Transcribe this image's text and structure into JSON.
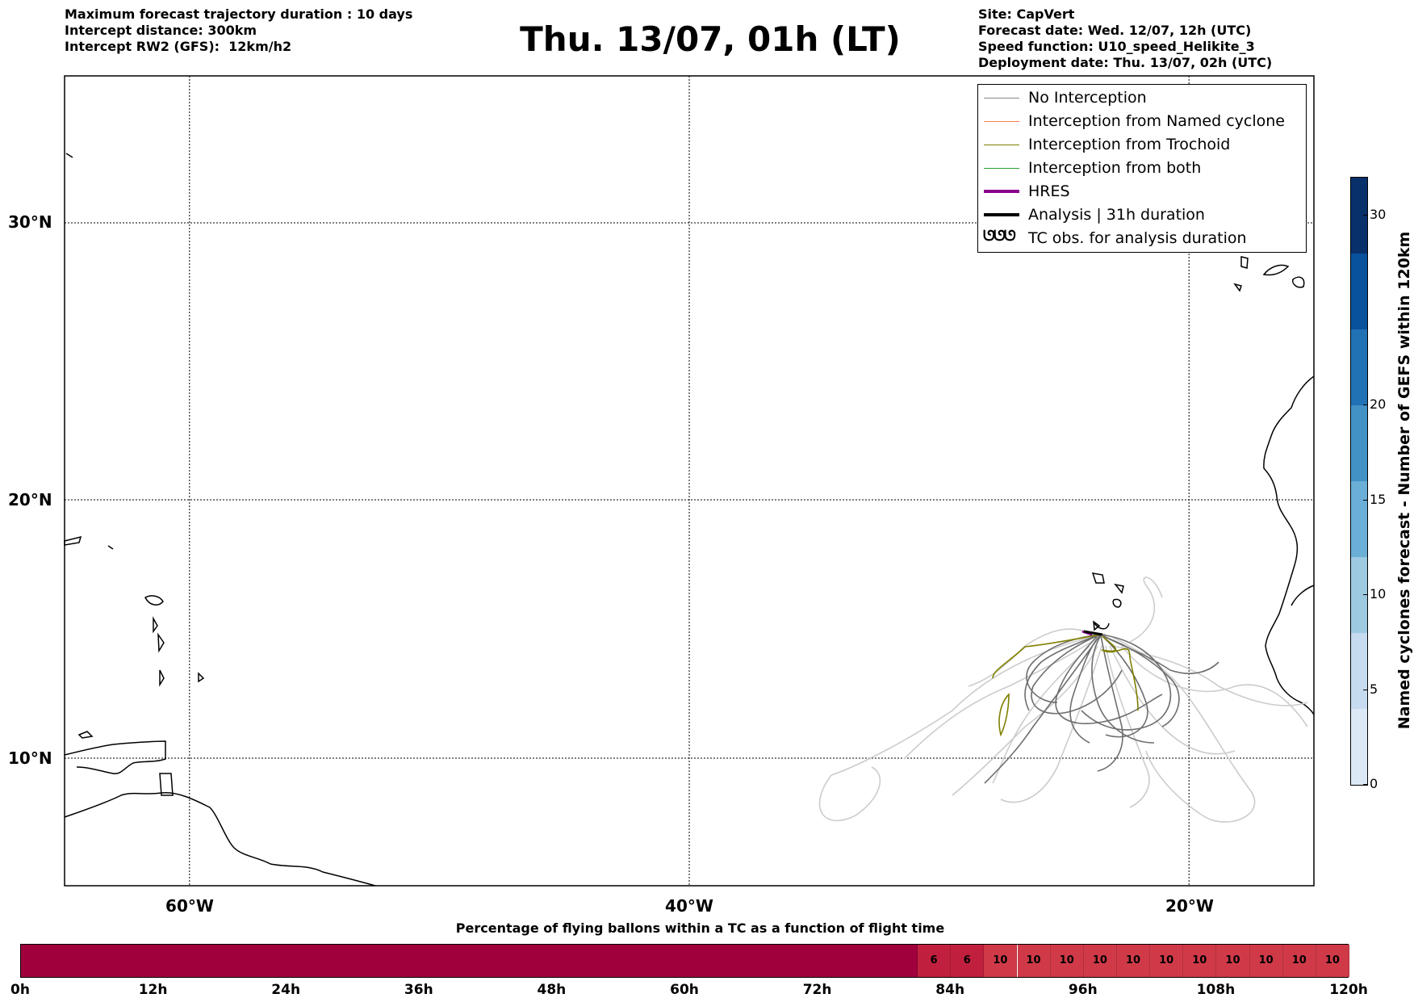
{
  "header": {
    "left_lines": [
      "Maximum forecast trajectory duration : 10 days",
      "Intercept distance: 300km",
      "Intercept RW2 (GFS):  12km/h2"
    ],
    "title": "Thu. 13/07, 01h (LT)",
    "right_lines": [
      "Site: CapVert",
      "Forecast date: Wed. 12/07, 12h (UTC)",
      "Speed function: U10_speed_Helikite_3",
      "Deployment date: Thu. 13/07, 02h (UTC)"
    ]
  },
  "map": {
    "lat_labels": [
      "30°N",
      "20°N",
      "10°N"
    ],
    "lon_labels": [
      "60°W",
      "40°W",
      "20°W"
    ],
    "lat_values": [
      30,
      20,
      10
    ],
    "lon_values": [
      -60,
      -40,
      -20
    ],
    "extent": {
      "lon_min": -65,
      "lon_max": -15,
      "lat_min": 5.4,
      "lat_max": 35.3
    },
    "grid": true,
    "colors": {
      "no_interception": "#888888",
      "no_interception_faint": "#cccccc",
      "named_cyclone": "#ff7f50",
      "trochoid": "#808000",
      "both": "#2ca02c",
      "hres": "#8b008b",
      "analysis": "#000000"
    }
  },
  "legend": {
    "items": [
      {
        "label": "No Interception",
        "color": "#888888",
        "width": 1
      },
      {
        "label": "Interception from Named cyclone",
        "color": "#ff7f50",
        "width": 1
      },
      {
        "label": "Interception from Trochoid",
        "color": "#808000",
        "width": 1
      },
      {
        "label": "Interception from both",
        "color": "#2ca02c",
        "width": 1
      },
      {
        "label": "HRES",
        "color": "#8b008b",
        "width": 4
      },
      {
        "label": "Analysis | 31h duration",
        "color": "#000000",
        "width": 4
      },
      {
        "label": "TC obs. for analysis duration",
        "symbol": "ᘎᘎᘎ"
      }
    ]
  },
  "colorbar": {
    "label": "Named cyclones forecast - Number of GEFS within 120km",
    "ticks": [
      0,
      5,
      10,
      15,
      20,
      30
    ],
    "max": 32,
    "colors": [
      "#dbe9f6",
      "#c6dbef",
      "#9ecae1",
      "#6baed6",
      "#4292c6",
      "#2171b5",
      "#08519c",
      "#08306b"
    ]
  },
  "time_bar": {
    "title": "Percentage of flying ballons within a TC as a function of flight time",
    "ticks": [
      "0h",
      "12h",
      "24h",
      "36h",
      "48h",
      "60h",
      "72h",
      "84h",
      "96h",
      "108h",
      "120h"
    ],
    "segments": [
      {
        "label": "",
        "value": 0
      },
      {
        "label": "6",
        "value": 6
      },
      {
        "label": "6",
        "value": 6
      },
      {
        "label": "10",
        "value": 10
      },
      {
        "label": "10",
        "value": 10
      },
      {
        "label": "10",
        "value": 10
      },
      {
        "label": "10",
        "value": 10
      },
      {
        "label": "10",
        "value": 10
      },
      {
        "label": "10",
        "value": 10
      },
      {
        "label": "10",
        "value": 10
      },
      {
        "label": "10",
        "value": 10
      },
      {
        "label": "10",
        "value": 10
      },
      {
        "label": "10",
        "value": 10
      },
      {
        "label": "10",
        "value": 10
      }
    ],
    "colors": {
      "zero": "#a0003c",
      "six": "#c0203e",
      "ten": "#d03a48"
    }
  }
}
